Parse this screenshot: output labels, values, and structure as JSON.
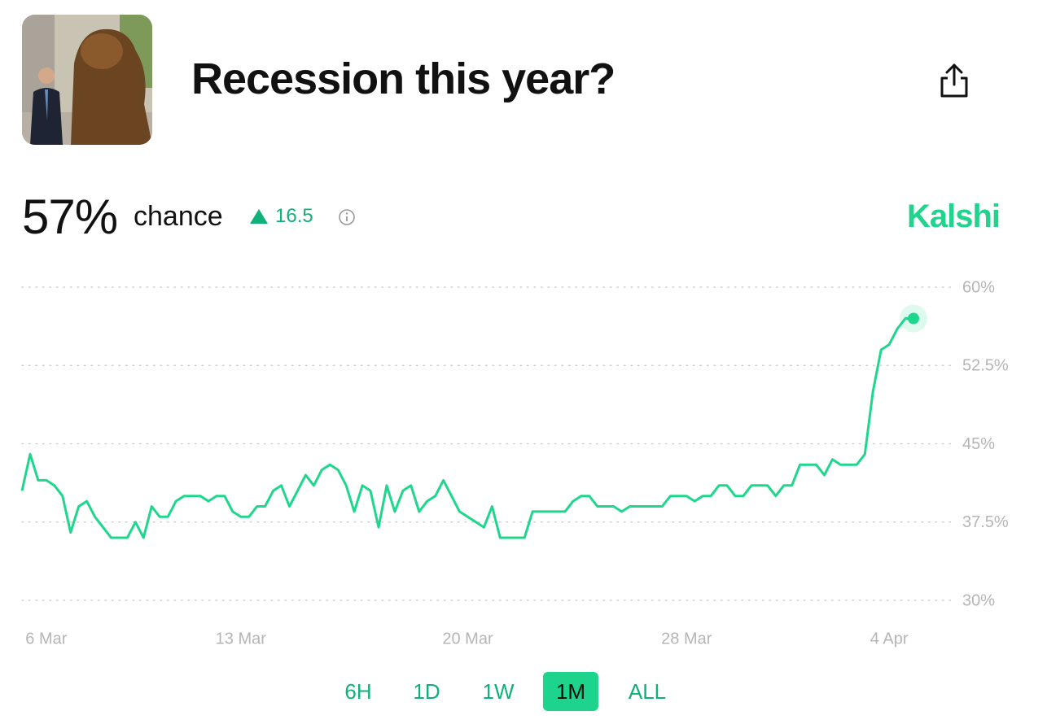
{
  "header": {
    "title": "Recession this year?"
  },
  "summary": {
    "probability": "57%",
    "label": "chance",
    "change": 16.5,
    "source": "Kalshi"
  },
  "chart_data": {
    "type": "line",
    "categories": [
      null,
      null,
      null,
      "6 Mar",
      null,
      null,
      null,
      null,
      null,
      null,
      null,
      null,
      null,
      null,
      null,
      null,
      null,
      null,
      null,
      null,
      null,
      null,
      null,
      null,
      null,
      null,
      null,
      "13 Mar",
      null,
      null,
      null,
      null,
      null,
      null,
      null,
      null,
      null,
      null,
      null,
      null,
      null,
      null,
      null,
      null,
      null,
      null,
      null,
      null,
      null,
      null,
      null,
      null,
      null,
      null,
      null,
      "20 Mar",
      null,
      null,
      null,
      null,
      null,
      null,
      null,
      null,
      null,
      null,
      null,
      null,
      null,
      null,
      null,
      null,
      null,
      null,
      null,
      null,
      null,
      null,
      null,
      null,
      null,
      null,
      "28 Mar",
      null,
      null,
      null,
      null,
      null,
      null,
      null,
      null,
      null,
      null,
      null,
      null,
      null,
      null,
      null,
      null,
      null,
      null,
      null,
      null,
      null,
      null,
      null,
      null,
      "4 Apr",
      null,
      null,
      null
    ],
    "series": [
      {
        "color": "#1fd68d",
        "values": [
          40.5,
          44,
          41.5,
          41.5,
          41,
          40,
          36.5,
          39,
          39.5,
          38,
          37,
          36,
          36,
          36,
          37.5,
          36,
          39,
          38,
          38,
          39.5,
          40,
          40,
          40,
          39.5,
          40,
          40,
          38.5,
          38,
          38,
          39,
          39,
          40.5,
          41,
          39,
          40.5,
          42,
          41,
          42.5,
          43,
          42.5,
          41,
          38.5,
          41,
          40.5,
          37,
          41,
          38.5,
          40.5,
          41,
          38.5,
          39.5,
          40,
          41.5,
          40,
          38.5,
          38,
          37.5,
          37,
          39,
          36,
          36,
          36,
          36,
          38.5,
          38.5,
          38.5,
          38.5,
          38.5,
          39.5,
          40,
          40,
          39,
          39,
          39,
          38.5,
          39,
          39,
          39,
          39,
          39,
          40,
          40,
          40,
          39.5,
          40,
          40,
          41,
          41,
          40,
          40,
          41,
          41,
          41,
          40,
          41,
          41,
          43,
          43,
          43,
          42,
          43.5,
          43,
          43,
          43,
          44,
          50,
          54,
          54.5,
          56,
          57,
          57
        ]
      }
    ],
    "ylim": [
      30,
      60
    ],
    "yticks": [
      {
        "value": 60,
        "label": "60%"
      },
      {
        "value": 52.5,
        "label": "52.5%"
      },
      {
        "value": 45,
        "label": "45%"
      },
      {
        "value": 37.5,
        "label": "37.5%"
      },
      {
        "value": 30,
        "label": "30%"
      }
    ],
    "grid": true
  },
  "periods": [
    "6H",
    "1D",
    "1W",
    "1M",
    "ALL"
  ]
}
